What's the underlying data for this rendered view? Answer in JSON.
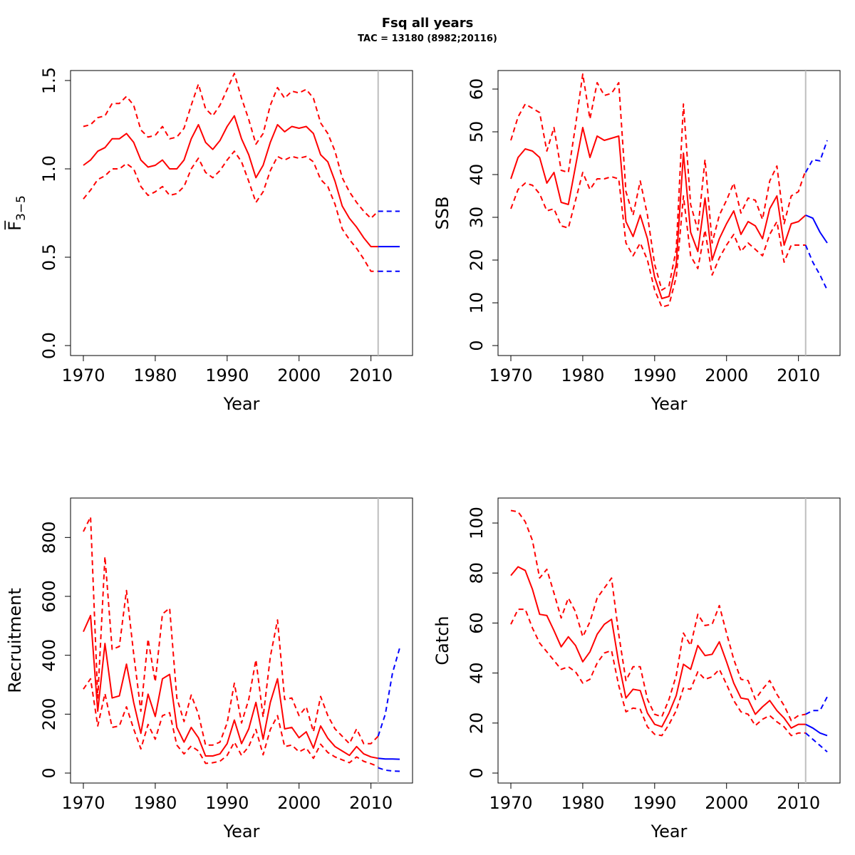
{
  "page": {
    "title": "Fsq all years",
    "subtitle": "TAC = 13180 (8982;20116)"
  },
  "colors": {
    "estimate": "#ff0000",
    "forecast": "#0000ff",
    "divider": "#bebebe",
    "axis": "#000000"
  },
  "chart_data": [
    {
      "id": "fbar",
      "type": "line",
      "xlabel": "Year",
      "ylabel": "F̅",
      "ylabel_sub": "3−5",
      "xlim": [
        1970,
        2014
      ],
      "ylim": [
        0,
        1.5
      ],
      "xticks": [
        1970,
        1980,
        1990,
        2000,
        2010
      ],
      "yticks": [
        0.0,
        0.5,
        1.0,
        1.5
      ],
      "ytick_labels": [
        "0.0",
        "0.5",
        "1.0",
        "1.5"
      ],
      "divider_x": 2011,
      "historic": {
        "x": [
          1970,
          1971,
          1972,
          1973,
          1974,
          1975,
          1976,
          1977,
          1978,
          1979,
          1980,
          1981,
          1982,
          1983,
          1984,
          1985,
          1986,
          1987,
          1988,
          1989,
          1990,
          1991,
          1992,
          1993,
          1994,
          1995,
          1996,
          1997,
          1998,
          1999,
          2000,
          2001,
          2002,
          2003,
          2004,
          2005,
          2006,
          2007,
          2008,
          2009,
          2010,
          2011
        ],
        "mid": [
          1.02,
          1.05,
          1.1,
          1.12,
          1.17,
          1.17,
          1.2,
          1.15,
          1.05,
          1.01,
          1.02,
          1.05,
          1.0,
          1.0,
          1.05,
          1.17,
          1.25,
          1.15,
          1.11,
          1.16,
          1.24,
          1.3,
          1.17,
          1.08,
          0.95,
          1.02,
          1.15,
          1.25,
          1.21,
          1.24,
          1.23,
          1.24,
          1.2,
          1.08,
          1.04,
          0.93,
          0.79,
          0.72,
          0.67,
          0.61,
          0.56,
          0.56
        ],
        "lower": [
          0.83,
          0.88,
          0.94,
          0.96,
          1.0,
          1.0,
          1.03,
          1.0,
          0.9,
          0.85,
          0.87,
          0.9,
          0.85,
          0.86,
          0.9,
          1.0,
          1.06,
          0.98,
          0.95,
          0.99,
          1.05,
          1.1,
          1.04,
          0.93,
          0.81,
          0.87,
          0.99,
          1.07,
          1.05,
          1.07,
          1.06,
          1.07,
          1.04,
          0.94,
          0.9,
          0.8,
          0.66,
          0.6,
          0.55,
          0.49,
          0.42,
          0.42
        ],
        "upper": [
          1.24,
          1.25,
          1.29,
          1.3,
          1.37,
          1.37,
          1.41,
          1.36,
          1.22,
          1.18,
          1.19,
          1.24,
          1.17,
          1.18,
          1.23,
          1.36,
          1.48,
          1.34,
          1.3,
          1.36,
          1.45,
          1.54,
          1.4,
          1.28,
          1.14,
          1.2,
          1.36,
          1.46,
          1.4,
          1.44,
          1.43,
          1.45,
          1.4,
          1.26,
          1.2,
          1.1,
          0.95,
          0.87,
          0.81,
          0.76,
          0.72,
          0.76
        ]
      },
      "forecast": {
        "x": [
          2011,
          2012,
          2013,
          2014
        ],
        "mid": [
          0.56,
          0.56,
          0.56,
          0.56
        ],
        "lower": [
          0.42,
          0.42,
          0.42,
          0.42
        ],
        "upper": [
          0.76,
          0.76,
          0.76,
          0.76
        ]
      }
    },
    {
      "id": "ssb",
      "type": "line",
      "xlabel": "Year",
      "ylabel": "SSB",
      "xlim": [
        1970,
        2014
      ],
      "ylim": [
        0,
        62
      ],
      "xticks": [
        1970,
        1980,
        1990,
        2000,
        2010
      ],
      "yticks": [
        0,
        10,
        20,
        30,
        40,
        50,
        60
      ],
      "ytick_labels": [
        "0",
        "10",
        "20",
        "30",
        "40",
        "50",
        "60"
      ],
      "divider_x": 2011,
      "historic": {
        "x": [
          1970,
          1971,
          1972,
          1973,
          1974,
          1975,
          1976,
          1977,
          1978,
          1979,
          1980,
          1981,
          1982,
          1983,
          1984,
          1985,
          1986,
          1987,
          1988,
          1989,
          1990,
          1991,
          1992,
          1993,
          1994,
          1995,
          1996,
          1997,
          1998,
          1999,
          2000,
          2001,
          2002,
          2003,
          2004,
          2005,
          2006,
          2007,
          2008,
          2009,
          2010,
          2011
        ],
        "mid": [
          39,
          44,
          46,
          45.5,
          44,
          38,
          40.5,
          33.5,
          33,
          42,
          51,
          44,
          49,
          48,
          48.5,
          49,
          29,
          25.5,
          30.5,
          25,
          16,
          11,
          11.5,
          19,
          45,
          26.5,
          22,
          34.5,
          20,
          25,
          28.5,
          31.5,
          26,
          29,
          28,
          25,
          32,
          35,
          23.5,
          28.5,
          29,
          30.5
        ],
        "lower": [
          32,
          36.5,
          38,
          37.5,
          35.5,
          31.5,
          32,
          28,
          27.5,
          34,
          40.5,
          36.5,
          39,
          39,
          39.5,
          39,
          24,
          21,
          24,
          20,
          13,
          9,
          9.5,
          16,
          35,
          21,
          18,
          27,
          16.5,
          20.5,
          23.5,
          26,
          22,
          24,
          22.5,
          21,
          26,
          29,
          19.5,
          23.5,
          23.5,
          23.5
        ],
        "upper": [
          48,
          53.5,
          56.5,
          55.5,
          54.5,
          45.5,
          51,
          41,
          40.5,
          51.5,
          63.5,
          53,
          61.5,
          58.5,
          59,
          61.5,
          36,
          30.5,
          38.5,
          30.5,
          19,
          13,
          14,
          22.5,
          56.5,
          33,
          27,
          43.5,
          24,
          30.5,
          34,
          38,
          31,
          34.5,
          34,
          29.5,
          38.5,
          42,
          28.5,
          35,
          36,
          41
        ]
      },
      "forecast": {
        "x": [
          2011,
          2012,
          2013,
          2014
        ],
        "mid": [
          30.5,
          29.8,
          26.5,
          24
        ],
        "lower": [
          23.5,
          19.5,
          16.5,
          13
        ],
        "upper": [
          40.5,
          43.5,
          43.2,
          48
        ]
      }
    },
    {
      "id": "recruitment",
      "type": "line",
      "xlabel": "Year",
      "ylabel": "Recruitment",
      "xlim": [
        1970,
        2014
      ],
      "ylim": [
        0,
        900
      ],
      "xticks": [
        1970,
        1980,
        1990,
        2000,
        2010
      ],
      "yticks": [
        0,
        200,
        400,
        600,
        800
      ],
      "ytick_labels": [
        "0",
        "200",
        "400",
        "600",
        "800"
      ],
      "divider_x": 2011,
      "historic": {
        "x": [
          1970,
          1971,
          1972,
          1973,
          1974,
          1975,
          1976,
          1977,
          1978,
          1979,
          1980,
          1981,
          1982,
          1983,
          1984,
          1985,
          1986,
          1987,
          1988,
          1989,
          1990,
          1991,
          1992,
          1993,
          1994,
          1995,
          1996,
          1997,
          1998,
          1999,
          2000,
          2001,
          2002,
          2003,
          2004,
          2005,
          2006,
          2007,
          2008,
          2009,
          2010,
          2011
        ],
        "mid": [
          480,
          535,
          210,
          440,
          255,
          262,
          370,
          240,
          135,
          268,
          192,
          320,
          335,
          155,
          105,
          155,
          120,
          58,
          58,
          65,
          100,
          180,
          100,
          150,
          240,
          115,
          240,
          320,
          150,
          155,
          120,
          140,
          85,
          160,
          118,
          90,
          75,
          60,
          90,
          65,
          55,
          50
        ],
        "lower": [
          285,
          320,
          160,
          270,
          155,
          160,
          225,
          150,
          82,
          165,
          115,
          195,
          205,
          95,
          65,
          92,
          75,
          33,
          35,
          40,
          60,
          105,
          60,
          90,
          148,
          62,
          148,
          195,
          90,
          95,
          72,
          85,
          50,
          98,
          70,
          55,
          45,
          35,
          55,
          40,
          32,
          22
        ],
        "upper": [
          820,
          870,
          255,
          735,
          420,
          430,
          620,
          405,
          210,
          455,
          310,
          540,
          560,
          255,
          175,
          265,
          200,
          95,
          95,
          105,
          170,
          305,
          170,
          250,
          385,
          190,
          395,
          520,
          250,
          255,
          195,
          225,
          140,
          260,
          195,
          150,
          125,
          100,
          150,
          100,
          100,
          125
        ]
      },
      "forecast": {
        "x": [
          2011,
          2012,
          2013,
          2014
        ],
        "mid": [
          50,
          48,
          48,
          47
        ],
        "lower": [
          18,
          10,
          7,
          6
        ],
        "upper": [
          125,
          200,
          340,
          425
        ]
      }
    },
    {
      "id": "catch",
      "type": "line",
      "xlabel": "Year",
      "ylabel": "Catch",
      "xlim": [
        1970,
        2014
      ],
      "ylim": [
        0,
        106
      ],
      "xticks": [
        1970,
        1980,
        1990,
        2000,
        2010
      ],
      "yticks": [
        0,
        20,
        40,
        60,
        80,
        100
      ],
      "ytick_labels": [
        "0",
        "20",
        "40",
        "60",
        "80",
        "100"
      ],
      "divider_x": 2011,
      "historic": {
        "x": [
          1970,
          1971,
          1972,
          1973,
          1974,
          1975,
          1976,
          1977,
          1978,
          1979,
          1980,
          1981,
          1982,
          1983,
          1984,
          1985,
          1986,
          1987,
          1988,
          1989,
          1990,
          1991,
          1992,
          1993,
          1994,
          1995,
          1996,
          1997,
          1998,
          1999,
          2000,
          2001,
          2002,
          2003,
          2004,
          2005,
          2006,
          2007,
          2008,
          2009,
          2010,
          2011
        ],
        "mid": [
          79,
          82.5,
          81,
          73.5,
          63.5,
          63,
          57,
          50.5,
          54.5,
          51,
          44.5,
          48.5,
          55.5,
          59.5,
          61.5,
          44,
          30,
          33.5,
          33,
          24,
          19.5,
          18.5,
          24,
          31,
          43.5,
          41.5,
          51,
          47,
          47.5,
          52.5,
          44.5,
          36,
          30,
          29.5,
          23.5,
          26.5,
          29,
          25,
          22,
          18,
          19.5,
          19.5
        ],
        "lower": [
          59.5,
          65.5,
          65.5,
          58,
          52,
          48.5,
          45,
          41.5,
          42.5,
          40.5,
          36,
          37.5,
          44,
          48,
          49,
          35,
          24.5,
          26,
          25.5,
          18.5,
          15.5,
          15,
          19.5,
          25,
          34,
          33.5,
          40.5,
          37.5,
          38.5,
          41.5,
          35.5,
          29,
          24.5,
          23.5,
          19,
          21.5,
          23,
          20.5,
          18.5,
          15,
          16,
          16
        ],
        "upper": [
          105,
          104.5,
          100.5,
          93,
          78,
          81.5,
          72,
          62,
          70,
          64.5,
          54.5,
          60.5,
          70,
          74,
          78,
          55.5,
          37,
          42.5,
          42.5,
          29.5,
          23.5,
          22.5,
          29.5,
          39,
          56,
          51,
          63.5,
          59,
          59.5,
          67,
          56,
          45.5,
          37.5,
          37,
          29.5,
          33.5,
          37,
          31.5,
          27,
          21,
          23,
          23.5
        ]
      },
      "forecast": {
        "x": [
          2011,
          2012,
          2013,
          2014
        ],
        "mid": [
          19.5,
          18,
          16,
          15
        ],
        "lower": [
          16,
          13.5,
          11,
          8.5
        ],
        "upper": [
          23.5,
          25,
          25,
          30.5
        ]
      }
    }
  ]
}
